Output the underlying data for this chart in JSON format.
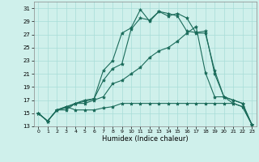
{
  "xlabel": "Humidex (Indice chaleur)",
  "xlim": [
    -0.5,
    23.5
  ],
  "ylim": [
    13,
    32
  ],
  "yticks": [
    13,
    15,
    17,
    19,
    21,
    23,
    25,
    27,
    29,
    31
  ],
  "xticks": [
    0,
    1,
    2,
    3,
    4,
    5,
    6,
    7,
    8,
    9,
    10,
    11,
    12,
    13,
    14,
    15,
    16,
    17,
    18,
    19,
    20,
    21,
    22,
    23
  ],
  "background_color": "#cff0eb",
  "grid_color": "#a8ddd7",
  "line_color": "#1a6b5a",
  "series": [
    [
      15.0,
      13.8,
      15.5,
      15.5,
      16.5,
      17.0,
      17.2,
      21.5,
      23.0,
      27.2,
      28.0,
      30.8,
      29.0,
      30.5,
      30.2,
      29.8,
      27.5,
      27.3,
      27.5,
      21.0,
      17.5,
      17.0,
      16.5,
      13.3
    ],
    [
      15.0,
      13.8,
      15.5,
      15.8,
      16.5,
      16.8,
      17.2,
      20.0,
      21.8,
      22.5,
      27.8,
      29.5,
      29.2,
      30.5,
      29.8,
      30.2,
      29.5,
      27.2,
      27.2,
      21.5,
      17.5,
      16.5,
      16.0,
      13.3
    ],
    [
      15.0,
      13.8,
      15.5,
      16.0,
      16.5,
      16.5,
      17.0,
      17.5,
      19.5,
      20.0,
      21.0,
      22.0,
      23.5,
      24.5,
      25.0,
      26.0,
      27.2,
      28.2,
      21.2,
      17.5,
      17.5,
      17.0,
      16.5,
      13.3
    ],
    [
      15.0,
      13.8,
      15.5,
      16.0,
      15.5,
      15.5,
      15.5,
      15.8,
      16.0,
      16.5,
      16.5,
      16.5,
      16.5,
      16.5,
      16.5,
      16.5,
      16.5,
      16.5,
      16.5,
      16.5,
      16.5,
      16.5,
      16.0,
      13.3
    ]
  ]
}
